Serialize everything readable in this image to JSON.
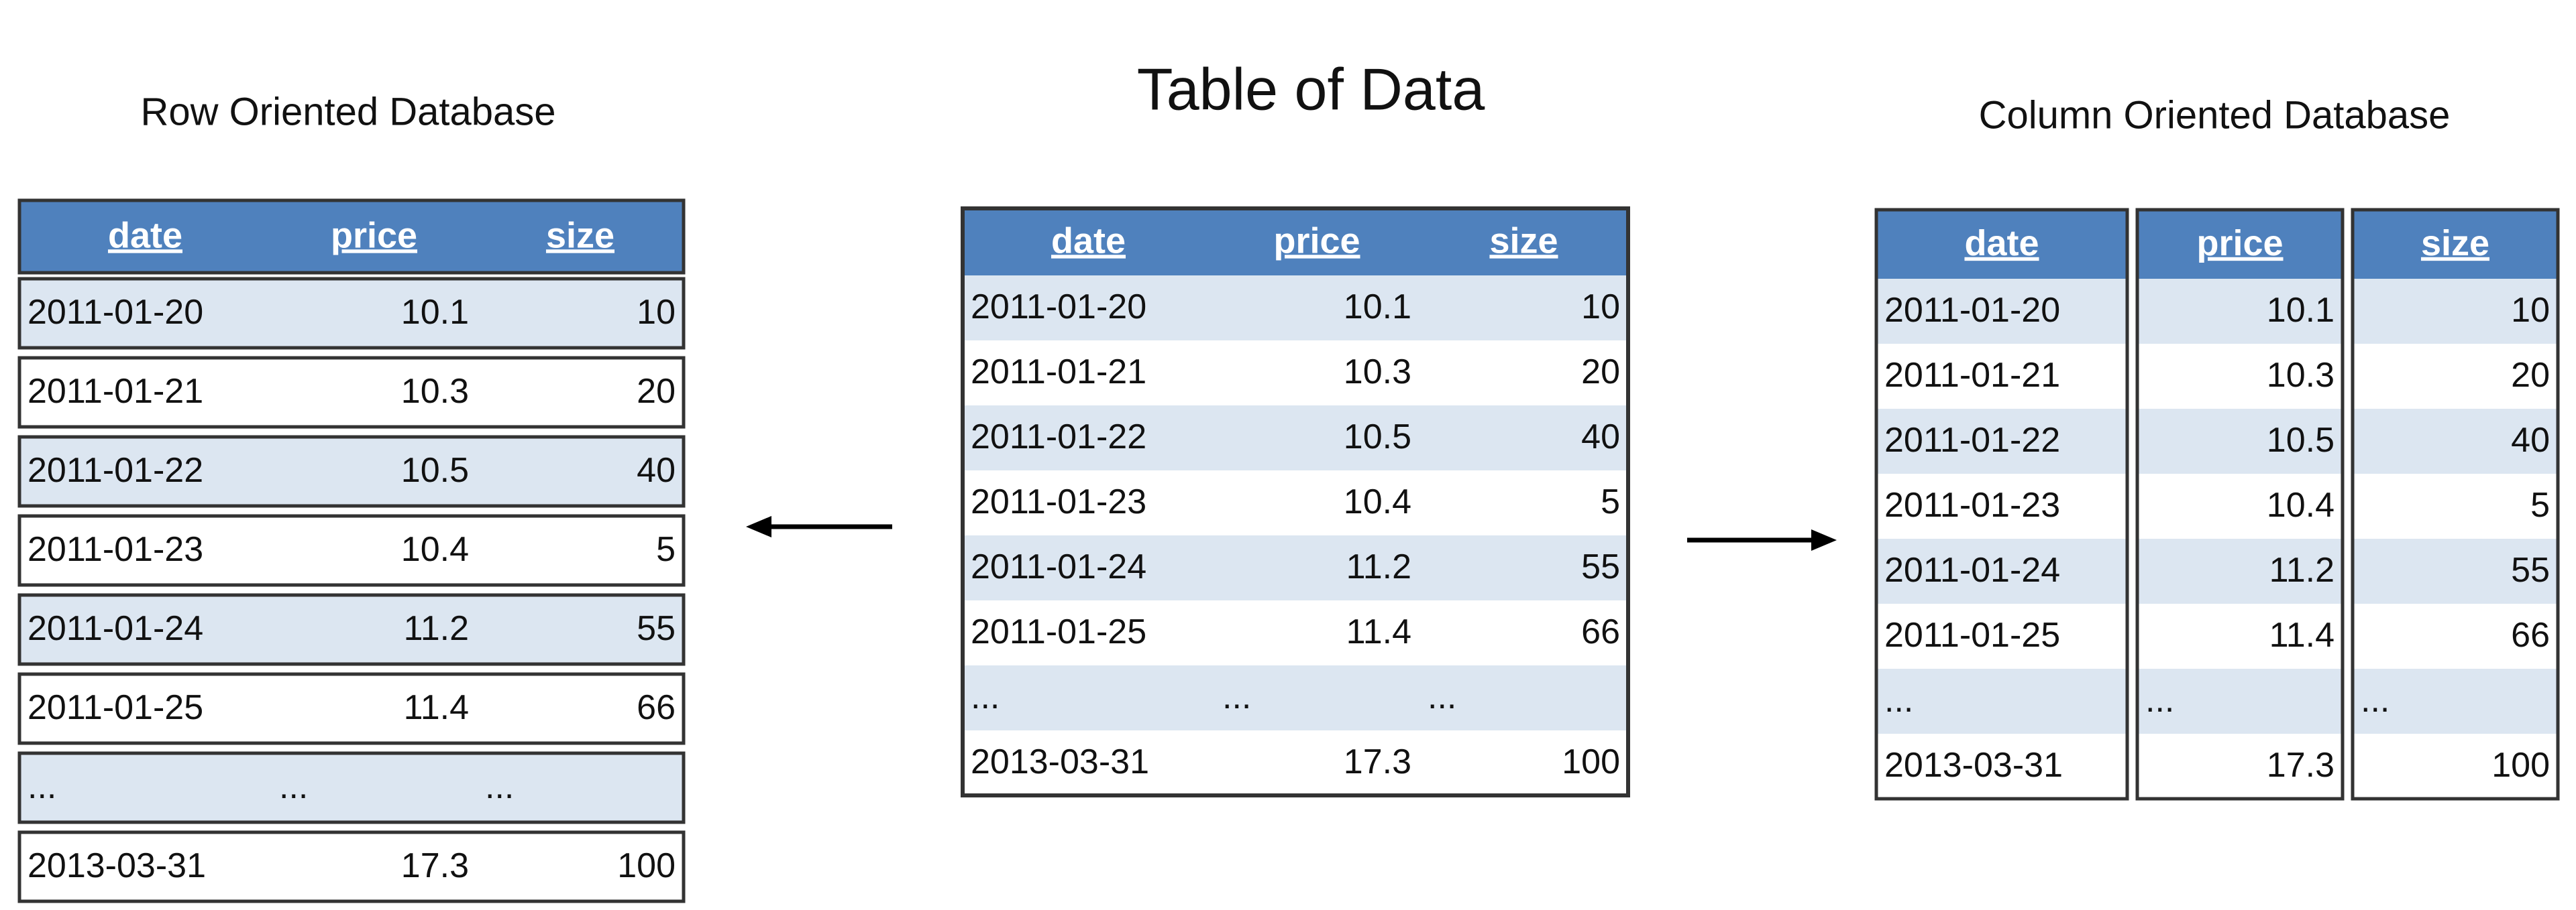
{
  "row_oriented": {
    "title": "Row Oriented Database"
  },
  "table_of_data": {
    "title": "Table of Data"
  },
  "column_oriented": {
    "title": "Column Oriented Database"
  },
  "table": {
    "columns": [
      "date",
      "price",
      "size"
    ],
    "rows": [
      [
        "2011-01-20",
        "10.1",
        "10"
      ],
      [
        "2011-01-21",
        "10.3",
        "20"
      ],
      [
        "2011-01-22",
        "10.5",
        "40"
      ],
      [
        "2011-01-23",
        "10.4",
        "5"
      ],
      [
        "2011-01-24",
        "11.2",
        "55"
      ],
      [
        "2011-01-25",
        "11.4",
        "66"
      ],
      [
        "...",
        "...",
        "..."
      ],
      [
        "2013-03-31",
        "17.3",
        "100"
      ]
    ]
  }
}
